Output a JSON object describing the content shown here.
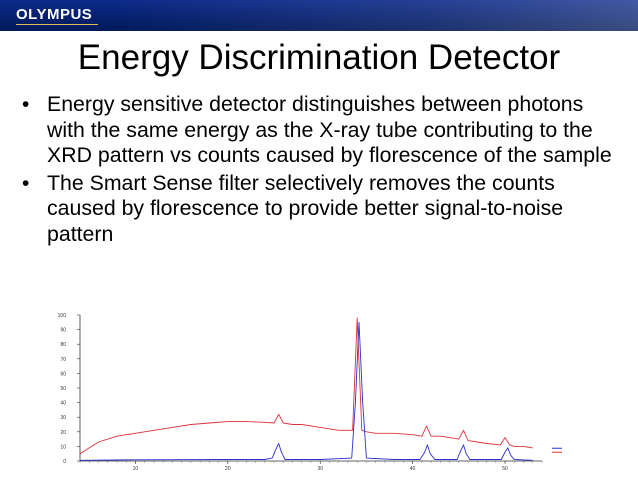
{
  "header": {
    "logo_text": "OLYMPUS"
  },
  "slide": {
    "title": "Energy Discrimination Detector",
    "bullets": [
      "Energy sensitive detector distinguishes between photons with the same energy as the X-ray tube contributing to the XRD pattern vs counts caused by florescence of the sample",
      "The Smart Sense filter selectively removes the counts caused by florescence to provide better signal-to-noise pattern"
    ]
  },
  "chart_data": {
    "type": "line",
    "xlim": [
      4,
      54
    ],
    "ylim": [
      0,
      100
    ],
    "x_ticks": [
      10,
      20,
      30,
      40,
      50
    ],
    "y_ticks": [
      0,
      10,
      20,
      30,
      40,
      50,
      60,
      70,
      80,
      90,
      100
    ],
    "legend_position": "right",
    "series": [
      {
        "color": "#e0303a",
        "x": [
          4,
          6,
          8,
          10,
          12,
          14,
          16,
          18,
          20,
          22,
          24,
          25,
          25.5,
          26,
          27,
          28,
          30,
          32,
          33.5,
          34,
          34.5,
          35,
          36,
          38,
          40,
          41,
          41.5,
          42,
          43,
          44,
          45,
          45.5,
          46,
          47,
          48,
          49.5,
          50,
          50.5,
          51,
          52,
          53
        ],
        "y": [
          5,
          13,
          17,
          19,
          21,
          23,
          25,
          26,
          27,
          27,
          26.5,
          26,
          32,
          26,
          25,
          25,
          23,
          21,
          21,
          98,
          21,
          20,
          19,
          19,
          18,
          17,
          24,
          17,
          17,
          16,
          15,
          21,
          14,
          13,
          12,
          11,
          16,
          11,
          10,
          10,
          9
        ]
      },
      {
        "color": "#2a2fd0",
        "x": [
          4,
          10,
          20,
          24,
          24.8,
          25.2,
          25.5,
          25.8,
          26.2,
          30,
          33.4,
          33.8,
          34.2,
          34.6,
          35,
          38,
          40.8,
          41.3,
          41.6,
          41.9,
          42.4,
          44.8,
          45.2,
          45.5,
          45.8,
          46.2,
          49.6,
          50,
          50.3,
          50.6,
          51,
          53
        ],
        "y": [
          0.5,
          0.8,
          1,
          1,
          2,
          8,
          12,
          6,
          1,
          1,
          2,
          40,
          95,
          40,
          2,
          1,
          1,
          6,
          11,
          5,
          1,
          1,
          7,
          11,
          5,
          1,
          1,
          6,
          9,
          4,
          1,
          0.5
        ]
      }
    ]
  }
}
